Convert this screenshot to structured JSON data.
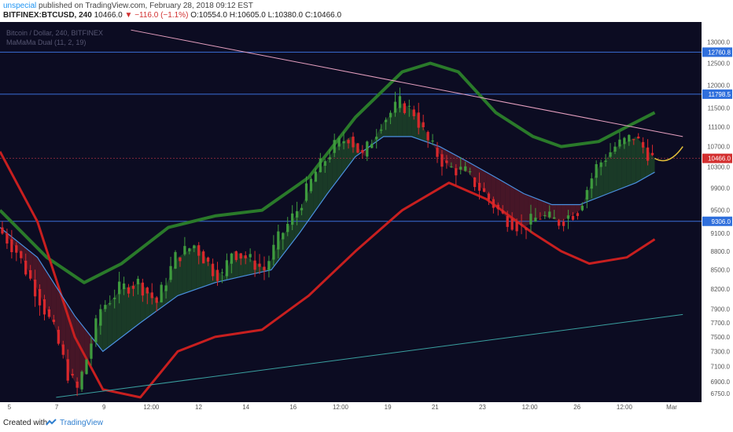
{
  "header": {
    "author": "unspecial",
    "published_text": "published on TradingView.com, February 28, 2018 09:12 EST",
    "symbol": "BITFINEX:BTCUSD, 240",
    "last": "10466.0",
    "change_arrow": "▼",
    "change": "−116.0 (−1.1%)",
    "open": "O:10554.0",
    "high": "H:10605.0",
    "low": "L:10380.0",
    "close": "C:10466.0"
  },
  "legend": {
    "title": "Bitcoin / Dollar, 240, BITFINEX",
    "indicator": "MaMaMa Dual (11, 2, 19)"
  },
  "footer": {
    "created_with": "Created with",
    "brand": "TradingView"
  },
  "colors": {
    "background": "#0c0c22",
    "up_candle": "#3e9a3e",
    "down_candle": "#d8282c",
    "bull_fill": "#1f4a2a",
    "bear_fill": "#5a1a2a",
    "envelope_upper": "#2a7a2a",
    "envelope_lower": "#c81f1f",
    "mid_line": "#4a90e0",
    "resistance_line": "#e6a0c0",
    "support_line": "#3aa0a0",
    "price_label": "#d32f2f",
    "level_label": "#2f6fdc"
  },
  "chart_data": {
    "type": "line",
    "title": "Bitcoin / Dollar, 240, BITFINEX",
    "xlabel": "",
    "ylabel": "",
    "x_ticks": [
      "5",
      "7",
      "9",
      "12:00",
      "12",
      "14",
      "16",
      "12:00",
      "19",
      "21",
      "23",
      "12:00",
      "26",
      "12:00",
      "Mar"
    ],
    "y_ticks": [
      13000,
      12500,
      12000,
      11500,
      11100,
      10700,
      10300,
      9900,
      9500,
      9100,
      8800,
      8500,
      8200,
      7900,
      7700,
      7500,
      7300,
      7100,
      6900,
      6750
    ],
    "y_scale": "log",
    "ylim": [
      6640,
      13500
    ],
    "last_price": 10466.0,
    "horizontal_levels": [
      12760.8,
      11798.5,
      9306.0
    ],
    "price_path": [
      [
        0,
        9200
      ],
      [
        4,
        8800
      ],
      [
        8,
        8200
      ],
      [
        12,
        7600
      ],
      [
        15,
        7000
      ],
      [
        17,
        6800
      ],
      [
        19,
        7200
      ],
      [
        22,
        7900
      ],
      [
        26,
        8200
      ],
      [
        30,
        8300
      ],
      [
        34,
        8000
      ],
      [
        38,
        8700
      ],
      [
        42,
        8900
      ],
      [
        46,
        8500
      ],
      [
        48,
        8400
      ],
      [
        50,
        8800
      ],
      [
        53,
        8700
      ],
      [
        57,
        8500
      ],
      [
        60,
        9000
      ],
      [
        64,
        9500
      ],
      [
        68,
        10200
      ],
      [
        72,
        10700
      ],
      [
        75,
        10900
      ],
      [
        78,
        10500
      ],
      [
        82,
        11200
      ],
      [
        86,
        11600
      ],
      [
        89,
        11400
      ],
      [
        92,
        10800
      ],
      [
        96,
        10300
      ],
      [
        100,
        10200
      ],
      [
        104,
        9800
      ],
      [
        108,
        9400
      ],
      [
        112,
        9200
      ],
      [
        116,
        9400
      ],
      [
        120,
        9300
      ],
      [
        124,
        9500
      ],
      [
        128,
        10300
      ],
      [
        132,
        10700
      ],
      [
        136,
        10900
      ],
      [
        140,
        10466
      ]
    ],
    "series": [
      {
        "name": "",
        "role": "upper envelope",
        "values": [
          [
            0,
            9500
          ],
          [
            10,
            8700
          ],
          [
            18,
            8300
          ],
          [
            26,
            8600
          ],
          [
            36,
            9200
          ],
          [
            46,
            9400
          ],
          [
            56,
            9500
          ],
          [
            66,
            10100
          ],
          [
            76,
            11300
          ],
          [
            86,
            12300
          ],
          [
            92,
            12500
          ],
          [
            98,
            12300
          ],
          [
            106,
            11400
          ],
          [
            114,
            10900
          ],
          [
            120,
            10700
          ],
          [
            128,
            10800
          ],
          [
            134,
            11100
          ],
          [
            140,
            11400
          ]
        ]
      },
      {
        "name": "",
        "role": "lower envelope",
        "values": [
          [
            0,
            10600
          ],
          [
            8,
            9300
          ],
          [
            16,
            7500
          ],
          [
            22,
            6800
          ],
          [
            30,
            6700
          ],
          [
            38,
            7300
          ],
          [
            46,
            7500
          ],
          [
            56,
            7600
          ],
          [
            66,
            8100
          ],
          [
            76,
            8800
          ],
          [
            86,
            9500
          ],
          [
            96,
            10000
          ],
          [
            104,
            9700
          ],
          [
            114,
            9100
          ],
          [
            120,
            8800
          ],
          [
            126,
            8600
          ],
          [
            134,
            8700
          ],
          [
            140,
            9000
          ]
        ]
      },
      {
        "name": "",
        "role": "mid line",
        "values": [
          [
            0,
            9200
          ],
          [
            8,
            8700
          ],
          [
            16,
            7800
          ],
          [
            22,
            7300
          ],
          [
            30,
            7700
          ],
          [
            38,
            8100
          ],
          [
            46,
            8300
          ],
          [
            52,
            8400
          ],
          [
            58,
            8500
          ],
          [
            64,
            9100
          ],
          [
            70,
            9800
          ],
          [
            76,
            10500
          ],
          [
            82,
            10900
          ],
          [
            88,
            10900
          ],
          [
            94,
            10700
          ],
          [
            100,
            10400
          ],
          [
            106,
            10100
          ],
          [
            112,
            9800
          ],
          [
            118,
            9600
          ],
          [
            124,
            9600
          ],
          [
            130,
            9800
          ],
          [
            136,
            10000
          ],
          [
            140,
            10200
          ]
        ]
      }
    ],
    "trendlines": [
      {
        "name": "",
        "role": "resistance",
        "from": [
          28,
          13300
        ],
        "to": [
          146,
          10900
        ]
      },
      {
        "name": "",
        "role": "support",
        "from": [
          12,
          6700
        ],
        "to": [
          146,
          7820
        ]
      }
    ],
    "projection": {
      "from": [
        140,
        10466
      ],
      "to": [
        146,
        10700
      ]
    },
    "grid": false,
    "legend_position": "top-left"
  }
}
